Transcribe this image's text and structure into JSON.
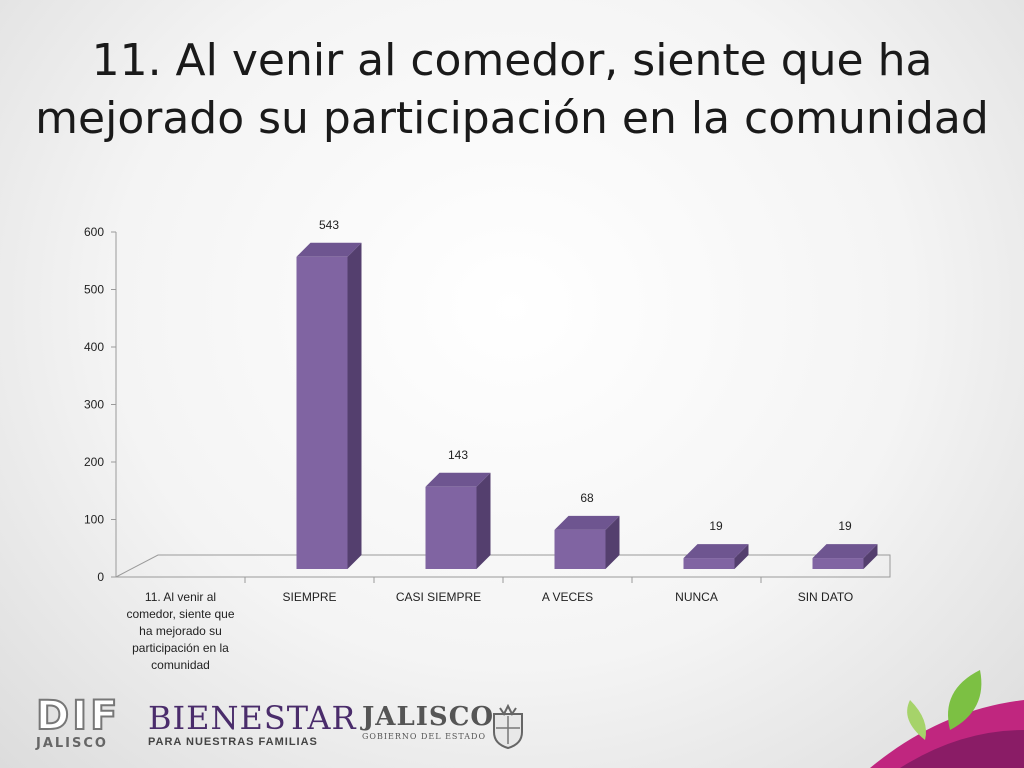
{
  "slide": {
    "title_line1": "11. Al venir al comedor, siente que ha",
    "title_line2": "mejorado su participación en la comunidad"
  },
  "chart_data": {
    "type": "bar",
    "style": "3d-column",
    "categories": [
      "11. Al venir al comedor, siente que ha mejorado su participación en la comunidad",
      "SIEMPRE",
      "CASI SIEMPRE",
      "A VECES",
      "NUNCA",
      "SIN DATO"
    ],
    "category_label_lines": [
      [
        "11. Al venir al",
        "comedor, siente que",
        "ha mejorado su",
        "participación en la",
        "comunidad"
      ],
      [
        "SIEMPRE"
      ],
      [
        "CASI SIEMPRE"
      ],
      [
        "A VECES"
      ],
      [
        "NUNCA"
      ],
      [
        "SIN DATO"
      ]
    ],
    "values": [
      null,
      543,
      143,
      68,
      19,
      19
    ],
    "data_labels": [
      "",
      "543",
      "143",
      "68",
      "19",
      "19"
    ],
    "ylim": [
      0,
      600
    ],
    "yticks": [
      0,
      100,
      200,
      300,
      400,
      500,
      600
    ],
    "grid": false,
    "legend": "none",
    "colors": {
      "front": "#8064a2",
      "side": "#543f6e",
      "top": "#6e5590"
    }
  },
  "logos": {
    "dif": {
      "main": "DIF",
      "sub": "JALISCO"
    },
    "bienestar": {
      "main": "BIENESTAR",
      "sub": "PARA NUESTRAS FAMILIAS"
    },
    "jalisco": {
      "main": "JALISCO",
      "sub": "GOBIERNO DEL ESTADO"
    }
  }
}
